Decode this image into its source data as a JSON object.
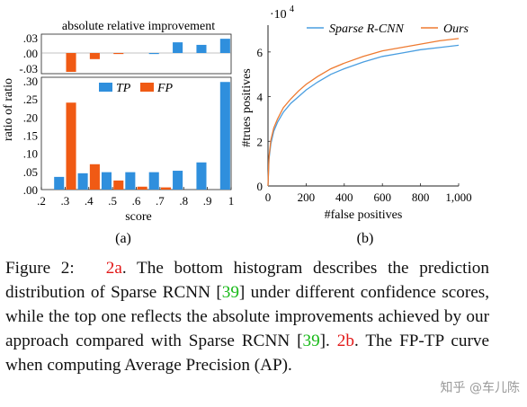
{
  "figure_a": {
    "top_title": "absolute relative improvement",
    "y_label": "ratio of ratio",
    "x_label": "score",
    "sub_label": "(a)",
    "top_ticks": [
      ".03",
      ".00",
      "-.03"
    ],
    "bottom_ticks": [
      ".30",
      ".25",
      ".20",
      ".15",
      ".10",
      ".05",
      ".00"
    ],
    "x_ticks": [
      ".2",
      ".3",
      ".4",
      ".5",
      ".6",
      ".7",
      ".8",
      ".9",
      "1"
    ],
    "legend": [
      {
        "label": "TP",
        "color": "#2f8fdd"
      },
      {
        "label": "FP",
        "color": "#f05a14"
      }
    ],
    "chart_data": {
      "type": "bar",
      "bin_centers": [
        0.25,
        0.35,
        0.45,
        0.55,
        0.65,
        0.75,
        0.85,
        0.95
      ],
      "top": {
        "ylim": [
          -0.045,
          0.035
        ],
        "TP": [
          0,
          0,
          0,
          0,
          -0.002,
          0.021,
          0.016,
          0.028
        ],
        "FP": [
          0,
          -0.037,
          -0.012,
          -0.002,
          0,
          0,
          0,
          0
        ]
      },
      "bottom": {
        "ylim": [
          0,
          0.31
        ],
        "TP": [
          0.035,
          0.045,
          0.048,
          0.048,
          0.048,
          0.052,
          0.075,
          0.297
        ],
        "FP": [
          0,
          0.24,
          0.07,
          0.025,
          0.008,
          0.006,
          0,
          0
        ]
      }
    }
  },
  "figure_b": {
    "exp_label": "·10",
    "exp_power": "4",
    "y_label": "#trues positives",
    "x_label": "#false positives",
    "sub_label": "(b)",
    "y_ticks": [
      "0",
      "2",
      "4",
      "6"
    ],
    "x_ticks": [
      "0",
      "200",
      "400",
      "600",
      "800",
      "1,000"
    ],
    "legend": [
      {
        "label": "Sparse R-CNN",
        "color": "#4a9ee0"
      },
      {
        "label": "Ours",
        "color": "#ee7a30"
      }
    ],
    "chart_data": {
      "type": "line",
      "xlim": [
        0,
        1000
      ],
      "ylim": [
        0,
        7.2
      ],
      "series": [
        {
          "name": "Sparse R-CNN",
          "x": [
            0,
            5,
            15,
            30,
            50,
            80,
            120,
            160,
            200,
            260,
            330,
            400,
            500,
            600,
            700,
            800,
            900,
            1000
          ],
          "y": [
            0,
            1.2,
            1.9,
            2.45,
            2.85,
            3.3,
            3.7,
            4.0,
            4.3,
            4.65,
            5.0,
            5.25,
            5.55,
            5.8,
            5.95,
            6.1,
            6.2,
            6.3
          ]
        },
        {
          "name": "Ours",
          "x": [
            0,
            5,
            15,
            30,
            50,
            80,
            120,
            160,
            200,
            260,
            330,
            400,
            500,
            600,
            700,
            800,
            900,
            1000
          ],
          "y": [
            0,
            1.3,
            2.05,
            2.6,
            3.0,
            3.5,
            3.9,
            4.25,
            4.55,
            4.9,
            5.25,
            5.5,
            5.8,
            6.05,
            6.2,
            6.35,
            6.5,
            6.6
          ]
        }
      ]
    }
  },
  "caption": {
    "prefix": "Figure 2:",
    "ref_a": "2a",
    "text1": ". The bottom histogram describes the prediction distribution of Sparse RCNN [",
    "cite1": "39",
    "text2": "] under different confidence scores, while the top one reflects the absolute improvements achieved by our approach compared with Sparse RCNN [",
    "cite2": "39",
    "text3": "]. ",
    "ref_b": "2b",
    "text4": ". The FP-TP curve when computing Average Precision (AP)."
  },
  "watermark": "知乎 @车儿陈"
}
